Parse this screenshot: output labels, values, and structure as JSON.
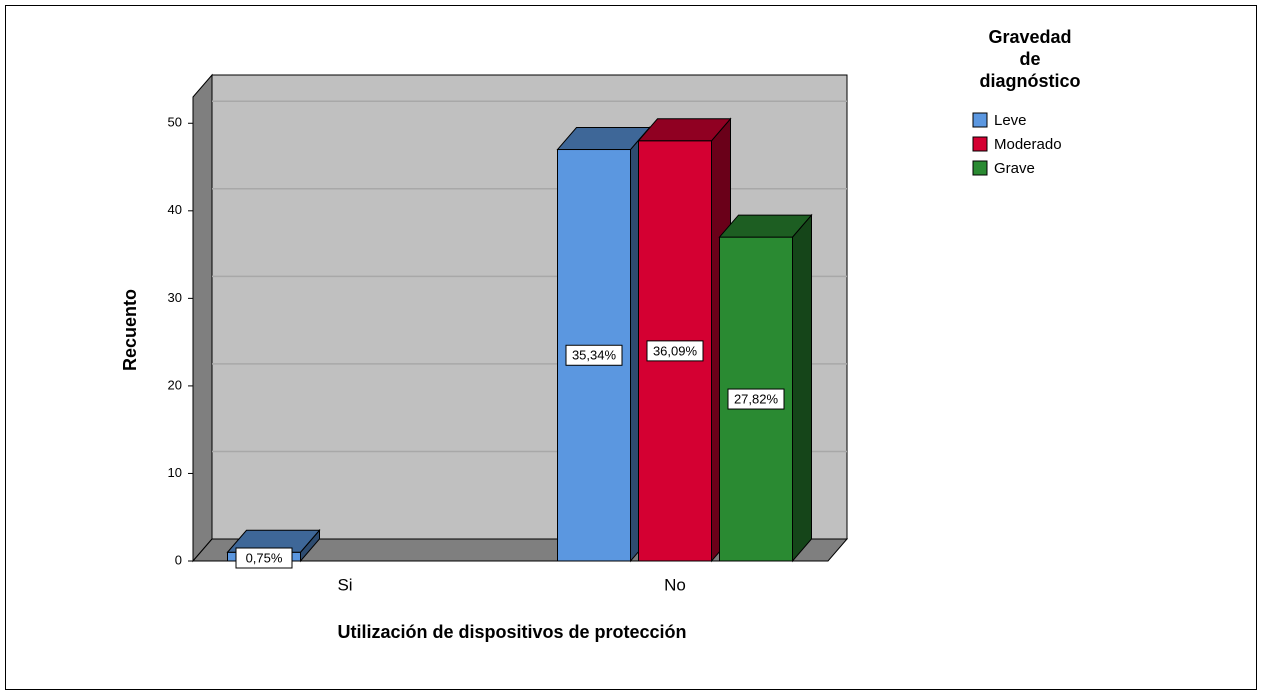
{
  "chart_data": {
    "type": "bar3d",
    "x_label": "Utilización de dispositivos de protección",
    "y_label": "Recuento",
    "legend_title": [
      "Gravedad",
      "de",
      "diagnóstico"
    ],
    "categories": [
      "Si",
      "No"
    ],
    "series": [
      {
        "name": "Leve",
        "color": "#5b97e0",
        "values": [
          1,
          47
        ],
        "percent_labels": [
          "0,75%",
          "35,34%"
        ]
      },
      {
        "name": "Moderado",
        "color": "#d40032",
        "values": [
          0,
          48
        ],
        "percent_labels": [
          null,
          "36,09%"
        ]
      },
      {
        "name": "Grave",
        "color": "#2a8a32",
        "values": [
          0,
          37
        ],
        "percent_labels": [
          null,
          "27,82%"
        ]
      }
    ],
    "ylim": [
      0,
      53
    ],
    "yticks": [
      0,
      10,
      20,
      30,
      40,
      50
    ],
    "grid": true
  }
}
